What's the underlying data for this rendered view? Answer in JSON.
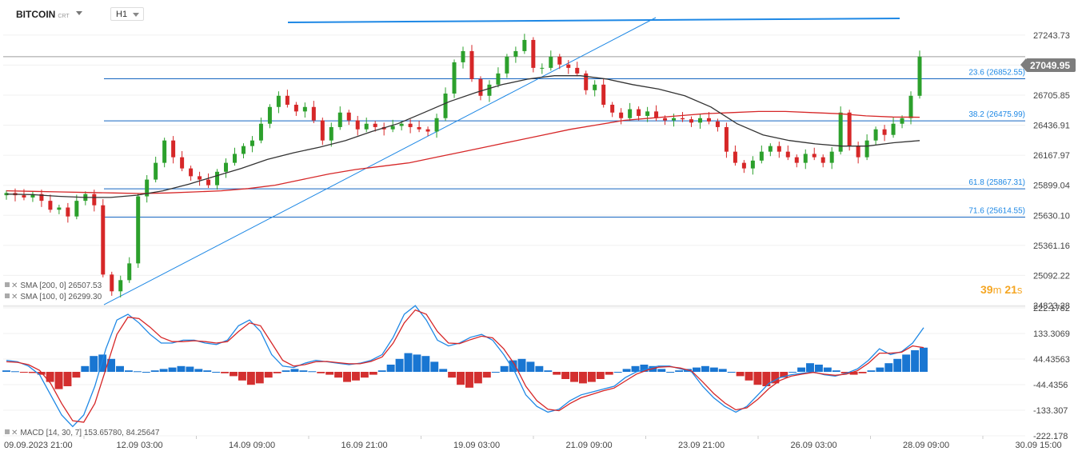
{
  "toolbar": {
    "symbol": "BITCOIN",
    "symbol_suffix": "CRT",
    "timeframe": "H1"
  },
  "legend": {
    "sma200": "SMA [200, 0] 26507.53",
    "sma100": "SMA [100, 0] 26299.30",
    "macd": "MACD [14, 30, 7] 153.65780, 84.25647"
  },
  "timer": {
    "minutes": "39",
    "min_unit": "m",
    "seconds": "21",
    "sec_unit": "s"
  },
  "last_price": "27049.95",
  "colors": {
    "up": "#2ca02c",
    "down": "#d62728",
    "sma200": "#d62728",
    "sma100": "#333333",
    "fib": "#1565c0",
    "trend": "#1e88e5",
    "hist_up": "#1976d2",
    "hist_down": "#d32f2f",
    "macd_line": "#1e88e5",
    "signal_line": "#d62728"
  },
  "chart_data": [
    {
      "type": "line",
      "title": "BITCOIN H1",
      "price_axis_ticks": [
        "27243.73",
        "26974.79",
        "26705.85",
        "26436.91",
        "26167.97",
        "25899.04",
        "25630.10",
        "25361.16",
        "25092.22",
        "24823.28"
      ],
      "ylim": [
        24823.28,
        27400
      ],
      "time_axis_ticks": [
        "09.09.2023 21:00",
        "12.09 03:00",
        "14.09 09:00",
        "16.09 21:00",
        "19.09 03:00",
        "21.09 09:00",
        "23.09 21:00",
        "26.09 03:00",
        "28.09 09:00",
        "30.09 15:00"
      ],
      "fib_levels": [
        {
          "label": "23.6 (26852.55)",
          "value": 26852.55
        },
        {
          "label": "38.2 (26475.99)",
          "value": 26475.99
        },
        {
          "label": "61.8 (25867.31)",
          "value": 25867.31
        },
        {
          "label": "71.6 (25614.55)",
          "value": 25614.55
        }
      ],
      "last_price": 27049.95,
      "series": [
        {
          "name": "Close",
          "values": [
            25830,
            25810,
            25790,
            25820,
            25760,
            25680,
            25700,
            25620,
            25760,
            25820,
            25720,
            25100,
            24950,
            25050,
            25200,
            25800,
            25950,
            26100,
            26300,
            26150,
            26050,
            25980,
            25950,
            25900,
            26020,
            26100,
            26180,
            26250,
            26300,
            26450,
            26600,
            26700,
            26620,
            26560,
            26600,
            26480,
            26300,
            26420,
            26550,
            26480,
            26400,
            26450,
            26420,
            26400,
            26430,
            26450,
            26420,
            26400,
            26380,
            26500,
            26720,
            27000,
            27100,
            26850,
            26700,
            26800,
            26900,
            27050,
            27100,
            27200,
            26950,
            26950,
            27050,
            26980,
            26950,
            26900,
            26750,
            26800,
            26620,
            26550,
            26500,
            26580,
            26520,
            26560,
            26500,
            26480,
            26500,
            26490,
            26460,
            26500,
            26470,
            26420,
            26200,
            26100,
            26050,
            26120,
            26200,
            26250,
            26200,
            26150,
            26100,
            26180,
            26150,
            26100,
            26200,
            26550,
            26250,
            26150,
            26300,
            26400,
            26350,
            26450,
            26500,
            26700,
            27049.95
          ]
        },
        {
          "name": "SMA 200",
          "values": [
            25850,
            25845,
            25840,
            25835,
            25830,
            25825,
            25830,
            25840,
            25850,
            25870,
            25900,
            25950,
            26000,
            26040,
            26070,
            26100,
            26150,
            26200,
            26250,
            26300,
            26350,
            26400,
            26440,
            26480,
            26500,
            26520,
            26540,
            26550,
            26560,
            26560,
            26550,
            26540,
            26520,
            26510,
            26508
          ]
        },
        {
          "name": "SMA 100",
          "values": [
            25820,
            25815,
            25800,
            25790,
            25790,
            25810,
            25850,
            25910,
            25980,
            26050,
            26130,
            26190,
            26240,
            26300,
            26380,
            26450,
            26550,
            26650,
            26730,
            26800,
            26850,
            26880,
            26880,
            26850,
            26800,
            26760,
            26700,
            26600,
            26450,
            26350,
            26300,
            26270,
            26250,
            26250,
            26280,
            26299
          ]
        }
      ]
    },
    {
      "type": "bar",
      "title": "MACD [14, 30, 7]",
      "y_axis_ticks": [
        "222.1782",
        "133.3069",
        "44.43563",
        "-44.4356",
        "-133.307",
        "-222.178"
      ],
      "ylim": [
        -222.178,
        222.1782
      ],
      "series": [
        {
          "name": "Histogram",
          "values": [
            5,
            2,
            -3,
            -4,
            -10,
            -35,
            -60,
            -50,
            -20,
            20,
            55,
            60,
            45,
            20,
            5,
            2,
            0,
            5,
            10,
            15,
            20,
            18,
            10,
            5,
            0,
            -5,
            -15,
            -30,
            -45,
            -40,
            -20,
            -5,
            5,
            10,
            5,
            2,
            -5,
            -10,
            -20,
            -35,
            -30,
            -20,
            -10,
            5,
            25,
            45,
            65,
            60,
            55,
            35,
            10,
            -20,
            -45,
            -55,
            -40,
            -20,
            0,
            20,
            40,
            45,
            35,
            20,
            5,
            -10,
            -25,
            -35,
            -40,
            -35,
            -25,
            -10,
            0,
            10,
            20,
            25,
            20,
            10,
            0,
            5,
            10,
            15,
            20,
            15,
            10,
            0,
            -15,
            -30,
            -45,
            -50,
            -40,
            -20,
            0,
            15,
            30,
            25,
            15,
            5,
            -5,
            -10,
            -5,
            5,
            15,
            30,
            45,
            60,
            75,
            84
          ]
        },
        {
          "name": "MACD",
          "values": [
            40,
            35,
            20,
            -10,
            -80,
            -150,
            -190,
            -150,
            -50,
            80,
            180,
            200,
            170,
            130,
            100,
            100,
            110,
            110,
            100,
            95,
            110,
            160,
            180,
            140,
            60,
            20,
            15,
            30,
            40,
            35,
            30,
            25,
            30,
            40,
            60,
            120,
            200,
            230,
            180,
            110,
            90,
            100,
            120,
            130,
            110,
            60,
            0,
            -80,
            -120,
            -140,
            -130,
            -100,
            -80,
            -70,
            -60,
            -50,
            -20,
            0,
            10,
            20,
            20,
            10,
            0,
            -50,
            -90,
            -120,
            -140,
            -120,
            -80,
            -40,
            -20,
            -10,
            -5,
            0,
            -10,
            -15,
            -5,
            10,
            40,
            80,
            60,
            70,
            100,
            153.66
          ]
        },
        {
          "name": "Signal",
          "values": [
            35,
            33,
            25,
            5,
            -40,
            -110,
            -170,
            -175,
            -110,
            10,
            130,
            190,
            185,
            155,
            120,
            105,
            105,
            108,
            105,
            100,
            105,
            140,
            170,
            160,
            100,
            40,
            20,
            25,
            35,
            36,
            32,
            28,
            28,
            36,
            52,
            100,
            170,
            215,
            200,
            140,
            100,
            98,
            112,
            124,
            118,
            80,
            25,
            -50,
            -100,
            -130,
            -135,
            -110,
            -90,
            -78,
            -66,
            -56,
            -32,
            -8,
            6,
            16,
            18,
            13,
            3,
            -35,
            -75,
            -108,
            -132,
            -125,
            -95,
            -58,
            -30,
            -15,
            -8,
            -2,
            -8,
            -12,
            -8,
            4,
            30,
            65,
            65,
            68,
            90,
            84.26
          ]
        }
      ]
    }
  ]
}
